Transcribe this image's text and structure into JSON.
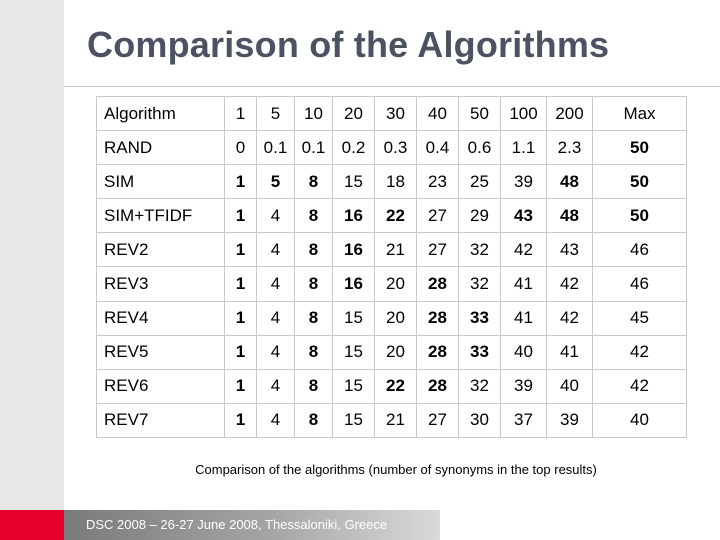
{
  "slide": {
    "title": "Comparison of the Algorithms",
    "caption": "Comparison of the algorithms (number of synonyms in the top results)",
    "footer": "DSC 2008 – 26-27 June 2008, Thessaloniki, Greece"
  },
  "table": {
    "headers": [
      "Algorithm",
      "1",
      "5",
      "10",
      "20",
      "30",
      "40",
      "50",
      "100",
      "200",
      "Max"
    ],
    "rows": [
      {
        "name": "RAND",
        "values": [
          "0",
          "0.1",
          "0.1",
          "0.2",
          "0.3",
          "0.4",
          "0.6",
          "1.1",
          "2.3",
          "50"
        ],
        "bold": [
          false,
          false,
          false,
          false,
          false,
          false,
          false,
          false,
          false,
          true
        ]
      },
      {
        "name": "SIM",
        "values": [
          "1",
          "5",
          "8",
          "15",
          "18",
          "23",
          "25",
          "39",
          "48",
          "50"
        ],
        "bold": [
          true,
          true,
          true,
          false,
          false,
          false,
          false,
          false,
          true,
          true
        ]
      },
      {
        "name": "SIM+TFIDF",
        "values": [
          "1",
          "4",
          "8",
          "16",
          "22",
          "27",
          "29",
          "43",
          "48",
          "50"
        ],
        "bold": [
          true,
          false,
          true,
          true,
          true,
          false,
          false,
          true,
          true,
          true
        ]
      },
      {
        "name": "REV2",
        "values": [
          "1",
          "4",
          "8",
          "16",
          "21",
          "27",
          "32",
          "42",
          "43",
          "46"
        ],
        "bold": [
          true,
          false,
          true,
          true,
          false,
          false,
          false,
          false,
          false,
          false
        ]
      },
      {
        "name": "REV3",
        "values": [
          "1",
          "4",
          "8",
          "16",
          "20",
          "28",
          "32",
          "41",
          "42",
          "46"
        ],
        "bold": [
          true,
          false,
          true,
          true,
          false,
          true,
          false,
          false,
          false,
          false
        ]
      },
      {
        "name": "REV4",
        "values": [
          "1",
          "4",
          "8",
          "15",
          "20",
          "28",
          "33",
          "41",
          "42",
          "45"
        ],
        "bold": [
          true,
          false,
          true,
          false,
          false,
          true,
          true,
          false,
          false,
          false
        ]
      },
      {
        "name": "REV5",
        "values": [
          "1",
          "4",
          "8",
          "15",
          "20",
          "28",
          "33",
          "40",
          "41",
          "42"
        ],
        "bold": [
          true,
          false,
          true,
          false,
          false,
          true,
          true,
          false,
          false,
          false
        ]
      },
      {
        "name": "REV6",
        "values": [
          "1",
          "4",
          "8",
          "15",
          "22",
          "28",
          "32",
          "39",
          "40",
          "42"
        ],
        "bold": [
          true,
          false,
          true,
          false,
          true,
          true,
          false,
          false,
          false,
          false
        ]
      },
      {
        "name": "REV7",
        "values": [
          "1",
          "4",
          "8",
          "15",
          "21",
          "27",
          "30",
          "37",
          "39",
          "40"
        ],
        "bold": [
          true,
          false,
          true,
          false,
          false,
          false,
          false,
          false,
          false,
          false
        ]
      }
    ]
  },
  "colors": {
    "title": "#4d5263",
    "accent_red": "#e4002b",
    "sidebar": "#e7e7e7",
    "grid": "#c9c9c9"
  }
}
